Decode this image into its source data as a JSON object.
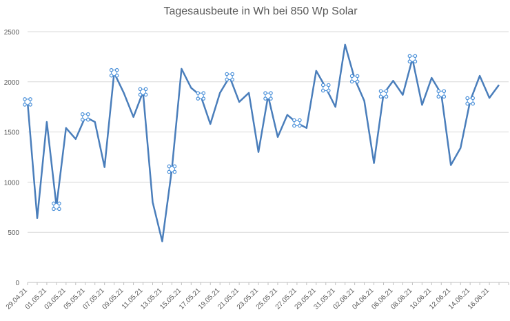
{
  "chart_data": {
    "type": "line",
    "title": "Tagesausbeute in Wh bei 850 Wp Solar",
    "xlabel": "",
    "ylabel": "",
    "ylim": [
      0,
      2500
    ],
    "yticks": [
      0,
      500,
      1000,
      1500,
      2000,
      2500
    ],
    "grid": true,
    "legend": "none",
    "line_color": "#4a7ebb",
    "marker_color": "#4a90d9",
    "x_tick_labels": [
      "29.04.21",
      "01.05.21",
      "03.05.21",
      "05.05.21",
      "07.05.21",
      "09.05.21",
      "11.05.21",
      "13.05.21",
      "15.05.21",
      "17.05.21",
      "19.05.21",
      "21.05.21",
      "23.05.21",
      "25.05.21",
      "27.05.21",
      "29.05.21",
      "31.05.21",
      "02.06.21",
      "04.06.21",
      "06.06.21",
      "08.06.21",
      "10.06.21",
      "12.06.21",
      "14.06.21",
      "16.06.21"
    ],
    "x": [
      "29.04.21",
      "30.04.21",
      "01.05.21",
      "02.05.21",
      "03.05.21",
      "04.05.21",
      "05.05.21",
      "06.05.21",
      "07.05.21",
      "08.05.21",
      "09.05.21",
      "10.05.21",
      "11.05.21",
      "12.05.21",
      "13.05.21",
      "14.05.21",
      "15.05.21",
      "16.05.21",
      "17.05.21",
      "18.05.21",
      "19.05.21",
      "20.05.21",
      "21.05.21",
      "22.05.21",
      "23.05.21",
      "24.05.21",
      "25.05.21",
      "26.05.21",
      "27.05.21",
      "28.05.21",
      "29.05.21",
      "30.05.21",
      "31.05.21",
      "01.06.21",
      "02.06.21",
      "03.06.21",
      "04.06.21",
      "05.06.21",
      "06.06.21",
      "07.06.21",
      "08.06.21",
      "09.06.21",
      "10.06.21",
      "11.06.21",
      "12.06.21",
      "13.06.21",
      "14.06.21",
      "15.06.21",
      "16.06.21",
      "17.06.21",
      "18.06.21"
    ],
    "series": [
      {
        "values": [
          1800,
          640,
          1600,
          760,
          1540,
          1430,
          1650,
          1600,
          1150,
          2090,
          1890,
          1650,
          1900,
          800,
          410,
          1130,
          2130,
          1940,
          1860,
          1580,
          1890,
          2050,
          1800,
          1890,
          1300,
          1860,
          1450,
          1670,
          1590,
          1540,
          2110,
          1940,
          1750,
          2370,
          2030,
          1810,
          1190,
          1880,
          2010,
          1870,
          2230,
          1770,
          2040,
          1880,
          1170,
          1340,
          1810,
          2060,
          1840,
          1970,
          null
        ]
      }
    ],
    "marked_points": [
      0,
      3,
      6,
      9,
      12,
      15,
      18,
      21,
      25,
      28,
      31,
      34,
      37,
      40,
      43,
      46
    ]
  }
}
